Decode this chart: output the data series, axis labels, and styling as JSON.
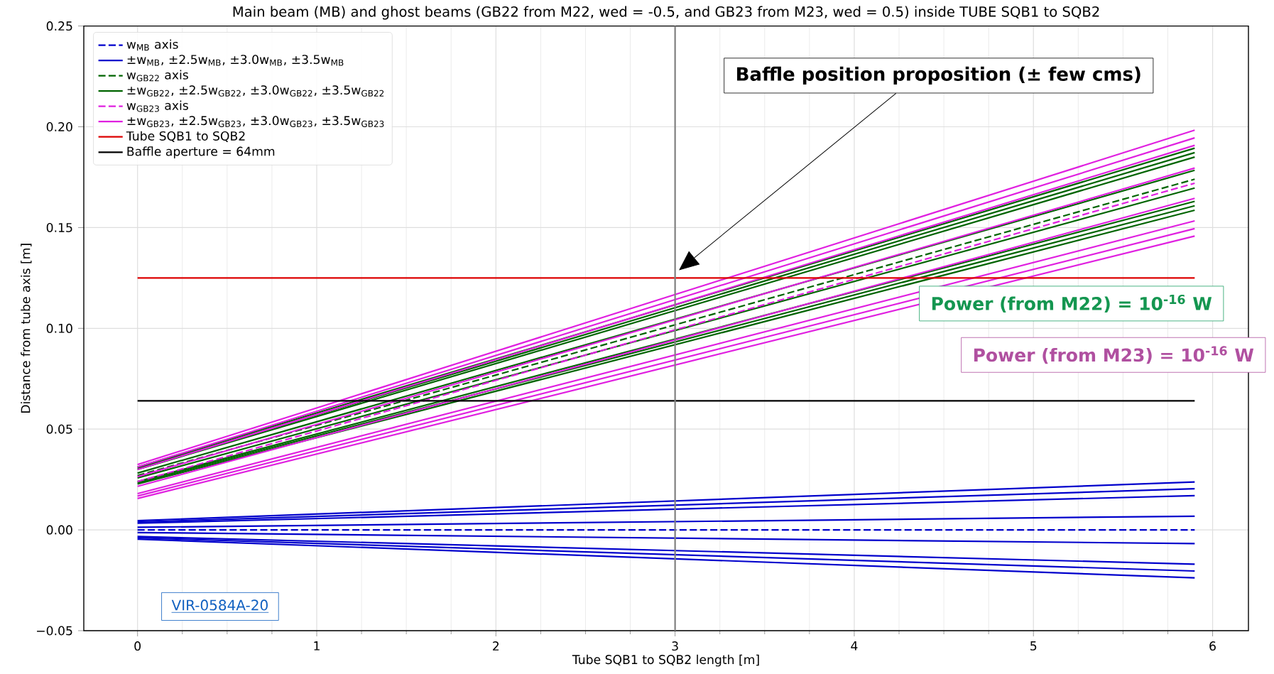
{
  "chart_data": {
    "type": "line",
    "title": "Main beam (MB) and ghost beams (GB22 from M22, wed = -0.5, and GB23 from M23, wed = 0.5) inside TUBE SQB1 to SQB2",
    "xlabel": "Tube SQB1 to SQB2 length [m]",
    "ylabel": "Distance from tube axis [m]",
    "x": [
      0,
      5.9
    ],
    "xlim": [
      -0.3,
      6.2
    ],
    "xticks": [
      0,
      1,
      2,
      3,
      4,
      5,
      6
    ],
    "ylim": [
      -0.05,
      0.25
    ],
    "yticks": [
      {
        "value": -0.05,
        "label": "−0.05"
      },
      {
        "value": 0,
        "label": "0.00"
      },
      {
        "value": 0.05,
        "label": "0.05"
      },
      {
        "value": 0.1,
        "label": "0.10"
      },
      {
        "value": 0.15,
        "label": "0.15"
      },
      {
        "value": 0.2,
        "label": "0.20"
      },
      {
        "value": 0.25,
        "label": "0.25"
      }
    ],
    "grid": true,
    "legend": "top left",
    "series": [
      {
        "name": "w$_{MB}$ axis",
        "color": "#0000cc",
        "line_style": "dashed",
        "values": [
          0,
          0
        ]
      },
      {
        "name": "±w$_{MB}$, ±2.5w$_{MB}$, ±3.0w$_{MB}$, ±3.5w$_{MB}$",
        "color": "#0000cc",
        "line_style": "solid",
        "values": [
          0.0013,
          0.0068
        ]
      },
      {
        "color": "#0000cc",
        "line_style": "solid",
        "values": [
          0.0033,
          0.017
        ]
      },
      {
        "color": "#0000cc",
        "line_style": "solid",
        "values": [
          0.0039,
          0.0204
        ]
      },
      {
        "color": "#0000cc",
        "line_style": "solid",
        "values": [
          0.0046,
          0.0238
        ]
      },
      {
        "color": "#0000cc",
        "line_style": "solid",
        "values": [
          -0.0013,
          -0.0068
        ]
      },
      {
        "color": "#0000cc",
        "line_style": "solid",
        "values": [
          -0.0033,
          -0.017
        ]
      },
      {
        "color": "#0000cc",
        "line_style": "solid",
        "values": [
          -0.0039,
          -0.0204
        ]
      },
      {
        "color": "#0000cc",
        "line_style": "solid",
        "values": [
          -0.0046,
          -0.0238
        ]
      },
      {
        "name": "w$_{GB22}$ axis",
        "color": "#006400",
        "line_style": "dashed",
        "values": [
          0.027,
          0.174
        ]
      },
      {
        "name": "±w$_{GB22}$, ±2.5w$_{GB22}$, ±3.0w$_{GB22}$, ±3.5w$_{GB22}$",
        "color": "#006400",
        "line_style": "solid",
        "values": [
          0.0282,
          0.1784
        ]
      },
      {
        "color": "#006400",
        "line_style": "solid",
        "values": [
          0.03,
          0.185
        ]
      },
      {
        "color": "#006400",
        "line_style": "solid",
        "values": [
          0.0306,
          0.1872
        ]
      },
      {
        "color": "#006400",
        "line_style": "solid",
        "values": [
          0.0312,
          0.1894
        ]
      },
      {
        "color": "#006400",
        "line_style": "solid",
        "values": [
          0.0258,
          0.1696
        ]
      },
      {
        "color": "#006400",
        "line_style": "solid",
        "values": [
          0.024,
          0.163
        ]
      },
      {
        "color": "#006400",
        "line_style": "solid",
        "values": [
          0.0234,
          0.1608
        ]
      },
      {
        "color": "#006400",
        "line_style": "solid",
        "values": [
          0.0228,
          0.1586
        ]
      },
      {
        "name": "w$_{GB23}$ axis",
        "color": "#e020e0",
        "line_style": "dashed",
        "values": [
          0.024,
          0.172
        ]
      },
      {
        "name": "±w$_{GB23}$, ±2.5w$_{GB23}$, ±3.0w$_{GB23}$, ±3.5w$_{GB23}$",
        "color": "#e020e0",
        "line_style": "solid",
        "values": [
          0.0264,
          0.1795
        ]
      },
      {
        "color": "#e020e0",
        "line_style": "solid",
        "values": [
          0.03,
          0.1908
        ]
      },
      {
        "color": "#e020e0",
        "line_style": "solid",
        "values": [
          0.0312,
          0.1945
        ]
      },
      {
        "color": "#e020e0",
        "line_style": "solid",
        "values": [
          0.0324,
          0.1983
        ]
      },
      {
        "color": "#e020e0",
        "line_style": "solid",
        "values": [
          0.0216,
          0.1645
        ]
      },
      {
        "color": "#e020e0",
        "line_style": "solid",
        "values": [
          0.018,
          0.1533
        ]
      },
      {
        "color": "#e020e0",
        "line_style": "solid",
        "values": [
          0.0168,
          0.1495
        ]
      },
      {
        "color": "#e020e0",
        "line_style": "solid",
        "values": [
          0.0156,
          0.1458
        ]
      },
      {
        "name": "Tube SQB1 to SQB2",
        "color": "#dd0000",
        "line_style": "solid",
        "values": [
          0.125,
          0.125
        ]
      },
      {
        "name": "Baffle aperture = 64mm",
        "color": "#000000",
        "line_style": "solid",
        "values": [
          0.064,
          0.064
        ]
      }
    ],
    "ref_lines": [
      {
        "axis": "x",
        "value": 3,
        "color": "#808080"
      }
    ],
    "annotations": [
      "Baffle position proposition  (± few cms)",
      "Power (from M22) = 10$^{-16}$ W",
      "Power (from M23) = 10$^{-16}$ W",
      "VIR-0584A-20"
    ]
  }
}
